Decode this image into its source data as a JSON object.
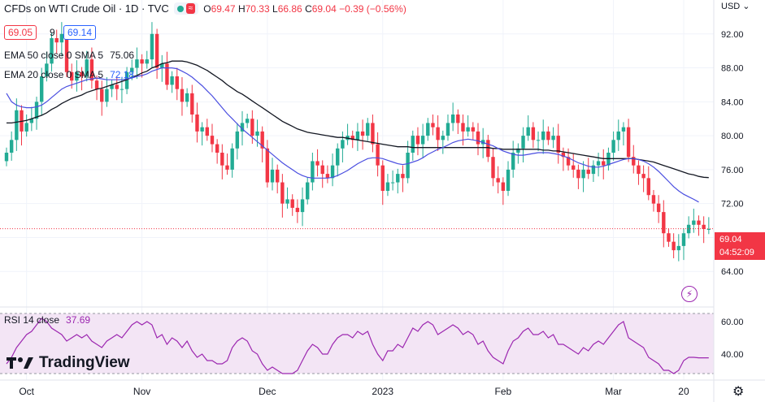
{
  "header": {
    "symbol": "CFDs on WTI Crude Oil · 1D · TVC",
    "open_label": "O",
    "open": "69.47",
    "high_label": "H",
    "high": "70.33",
    "low_label": "L",
    "low": "66.86",
    "close_label": "C",
    "close": "69.04",
    "change": "−0.39 (−0.56%)",
    "sell_price": "69.05",
    "spread": "9",
    "buy_price": "69.14"
  },
  "indicators": {
    "ema50": {
      "label": "EMA 50 close 0 SMA 5",
      "value": "75.06",
      "color": "#131722"
    },
    "ema20": {
      "label": "EMA 20 close 0 SMA 5",
      "value": "72.18",
      "color": "#2962ff"
    },
    "rsi": {
      "label": "RSI 14 close",
      "value": "37.69",
      "color": "#9c27b0"
    }
  },
  "axis": {
    "currency": "USD",
    "last_price": "69.04",
    "countdown": "04:52:09"
  },
  "branding": {
    "logo_text": "TradingView"
  },
  "colors": {
    "up": "#22ab94",
    "down": "#f23645",
    "ema50": "#131722",
    "ema20": "#4a4ee0",
    "rsi": "#9c27b0",
    "rsi_band": "#f3e5f5"
  },
  "chart_data": {
    "type": "candlestick",
    "price_ylim": [
      60,
      96
    ],
    "price_ticks": [
      64,
      68,
      72,
      76,
      80,
      84,
      88,
      92
    ],
    "price_tick_labels": [
      "64.00",
      "68.00",
      "72.00",
      "76.00",
      "80.00",
      "84.00",
      "88.00",
      "92.00"
    ],
    "rsi_ylim": [
      25,
      68
    ],
    "rsi_ticks": [
      40,
      60
    ],
    "rsi_tick_labels": [
      "40.00",
      "60.00"
    ],
    "rsi_band": [
      30,
      70
    ],
    "x_tick_labels": [
      {
        "label": "Oct",
        "bar": 4
      },
      {
        "label": "Nov",
        "bar": 27
      },
      {
        "label": "Dec",
        "bar": 52
      },
      {
        "label": "2023",
        "bar": 75
      },
      {
        "label": "Feb",
        "bar": 99
      },
      {
        "label": "Mar",
        "bar": 121
      },
      {
        "label": "20",
        "bar": 135
      }
    ],
    "total_bars": 141,
    "close": [
      78.0,
      79.5,
      83.0,
      80.5,
      81.5,
      82.0,
      84.0,
      87.0,
      88.5,
      91.5,
      91.0,
      92.0,
      87.5,
      86.5,
      87.5,
      87.0,
      89.0,
      86.5,
      85.5,
      84.0,
      85.5,
      86.0,
      85.5,
      85.5,
      87.5,
      88.0,
      89.0,
      88.5,
      89.0,
      92.0,
      88.0,
      88.5,
      86.0,
      87.0,
      85.5,
      84.0,
      85.0,
      82.5,
      80.5,
      81.0,
      80.0,
      79.0,
      78.0,
      76.5,
      76.0,
      78.5,
      80.5,
      81.5,
      82.0,
      80.0,
      80.5,
      78.5,
      74.5,
      76.0,
      74.5,
      72.0,
      72.5,
      71.5,
      71.0,
      72.5,
      74.5,
      77.0,
      76.5,
      75.5,
      75.0,
      76.5,
      78.5,
      79.5,
      80.0,
      79.5,
      80.5,
      80.0,
      81.5,
      79.0,
      76.5,
      73.5,
      74.5,
      74.5,
      75.5,
      75.0,
      78.0,
      80.0,
      79.0,
      80.0,
      81.5,
      81.0,
      79.5,
      80.0,
      81.5,
      82.5,
      81.5,
      80.5,
      81.0,
      80.5,
      79.0,
      79.5,
      77.5,
      75.0,
      74.5,
      73.5,
      76.0,
      78.0,
      78.5,
      80.0,
      81.0,
      79.5,
      79.5,
      80.5,
      79.5,
      80.0,
      78.0,
      77.5,
      76.5,
      76.0,
      75.0,
      76.0,
      75.5,
      76.5,
      77.0,
      76.5,
      78.0,
      79.5,
      80.5,
      81.0,
      77.5,
      76.5,
      75.5,
      75.0,
      73.0,
      72.0,
      71.0,
      68.5,
      67.5,
      66.5,
      67.0,
      68.5,
      69.5,
      70.0,
      69.5,
      69.0,
      69.0
    ],
    "ema50": [
      81.5,
      81.5,
      81.6,
      81.7,
      81.8,
      82.0,
      82.2,
      82.4,
      82.7,
      83.1,
      83.4,
      83.8,
      84.1,
      84.4,
      84.6,
      84.8,
      85.1,
      85.3,
      85.5,
      85.6,
      85.8,
      86.0,
      86.2,
      86.4,
      86.6,
      86.9,
      87.1,
      87.4,
      87.6,
      88.0,
      88.2,
      88.5,
      88.6,
      88.8,
      88.8,
      88.8,
      88.7,
      88.5,
      88.3,
      88.0,
      87.7,
      87.3,
      86.9,
      86.5,
      86.0,
      85.6,
      85.2,
      84.9,
      84.5,
      84.1,
      83.7,
      83.3,
      82.9,
      82.5,
      82.1,
      81.7,
      81.4,
      81.1,
      80.8,
      80.6,
      80.4,
      80.3,
      80.2,
      80.1,
      80.0,
      79.9,
      79.8,
      79.8,
      79.7,
      79.6,
      79.5,
      79.4,
      79.3,
      79.2,
      79.1,
      79.0,
      78.9,
      78.8,
      78.7,
      78.7,
      78.7,
      78.6,
      78.6,
      78.6,
      78.6,
      78.6,
      78.6,
      78.6,
      78.6,
      78.6,
      78.6,
      78.6,
      78.6,
      78.6,
      78.6,
      78.6,
      78.6,
      78.5,
      78.5,
      78.4,
      78.4,
      78.4,
      78.4,
      78.4,
      78.4,
      78.4,
      78.4,
      78.3,
      78.3,
      78.2,
      78.2,
      78.1,
      78.0,
      77.9,
      77.8,
      77.7,
      77.6,
      77.5,
      77.4,
      77.3,
      77.3,
      77.3,
      77.3,
      77.3,
      77.3,
      77.3,
      77.2,
      77.1,
      77.0,
      76.9,
      76.7,
      76.5,
      76.3,
      76.1,
      75.9,
      75.7,
      75.5,
      75.4,
      75.2,
      75.1,
      75.06
    ],
    "ema20": [
      85.0,
      84.0,
      83.6,
      83.4,
      83.3,
      83.3,
      83.4,
      83.6,
      84.0,
      84.5,
      85.0,
      85.5,
      85.8,
      86.0,
      86.2,
      86.4,
      86.6,
      86.7,
      86.8,
      86.7,
      86.6,
      86.6,
      86.6,
      86.6,
      86.7,
      86.8,
      87.0,
      87.1,
      87.3,
      87.6,
      87.8,
      88.0,
      88.0,
      88.0,
      87.9,
      87.6,
      87.3,
      86.9,
      86.4,
      85.9,
      85.3,
      84.7,
      84.0,
      83.3,
      82.6,
      82.0,
      81.4,
      80.8,
      80.3,
      79.8,
      79.3,
      78.8,
      78.3,
      77.8,
      77.3,
      76.8,
      76.4,
      76.0,
      75.6,
      75.3,
      75.1,
      75.0,
      75.0,
      75.0,
      75.0,
      75.1,
      75.3,
      75.6,
      75.9,
      76.3,
      76.7,
      77.0,
      77.3,
      77.4,
      77.4,
      77.3,
      77.1,
      76.9,
      76.7,
      76.6,
      76.7,
      76.9,
      77.1,
      77.4,
      77.8,
      78.1,
      78.4,
      78.6,
      78.9,
      79.2,
      79.4,
      79.5,
      79.6,
      79.5,
      79.4,
      79.2,
      79.0,
      78.8,
      78.5,
      78.2,
      78.0,
      77.8,
      77.7,
      77.7,
      77.8,
      77.9,
      78.0,
      78.0,
      78.0,
      77.9,
      77.8,
      77.6,
      77.4,
      77.1,
      76.8,
      76.6,
      76.4,
      76.3,
      76.3,
      76.4,
      76.6,
      76.8,
      77.0,
      77.2,
      77.3,
      77.3,
      77.2,
      77.0,
      76.7,
      76.3,
      75.8,
      75.2,
      74.6,
      74.0,
      73.5,
      73.1,
      72.8,
      72.5,
      72.18
    ],
    "rsi": [
      34,
      38,
      44,
      48,
      52,
      54,
      58,
      62,
      60,
      56,
      54,
      52,
      48,
      50,
      52,
      50,
      52,
      48,
      46,
      44,
      48,
      50,
      52,
      50,
      54,
      58,
      60,
      58,
      60,
      58,
      50,
      52,
      46,
      50,
      48,
      44,
      48,
      42,
      38,
      40,
      36,
      36,
      34,
      34,
      36,
      44,
      48,
      50,
      48,
      42,
      40,
      34,
      30,
      32,
      30,
      28,
      28,
      28,
      30,
      36,
      42,
      46,
      44,
      40,
      40,
      46,
      50,
      52,
      52,
      50,
      54,
      52,
      54,
      46,
      40,
      36,
      42,
      42,
      46,
      44,
      50,
      56,
      54,
      58,
      60,
      58,
      52,
      54,
      56,
      58,
      56,
      52,
      54,
      52,
      46,
      48,
      42,
      38,
      36,
      34,
      42,
      48,
      50,
      54,
      56,
      52,
      52,
      54,
      50,
      52,
      46,
      46,
      44,
      42,
      40,
      44,
      42,
      46,
      48,
      46,
      50,
      54,
      58,
      60,
      50,
      48,
      46,
      44,
      38,
      36,
      34,
      30,
      30,
      28,
      30,
      36,
      38,
      38,
      37.69,
      37.69,
      37.69
    ]
  }
}
